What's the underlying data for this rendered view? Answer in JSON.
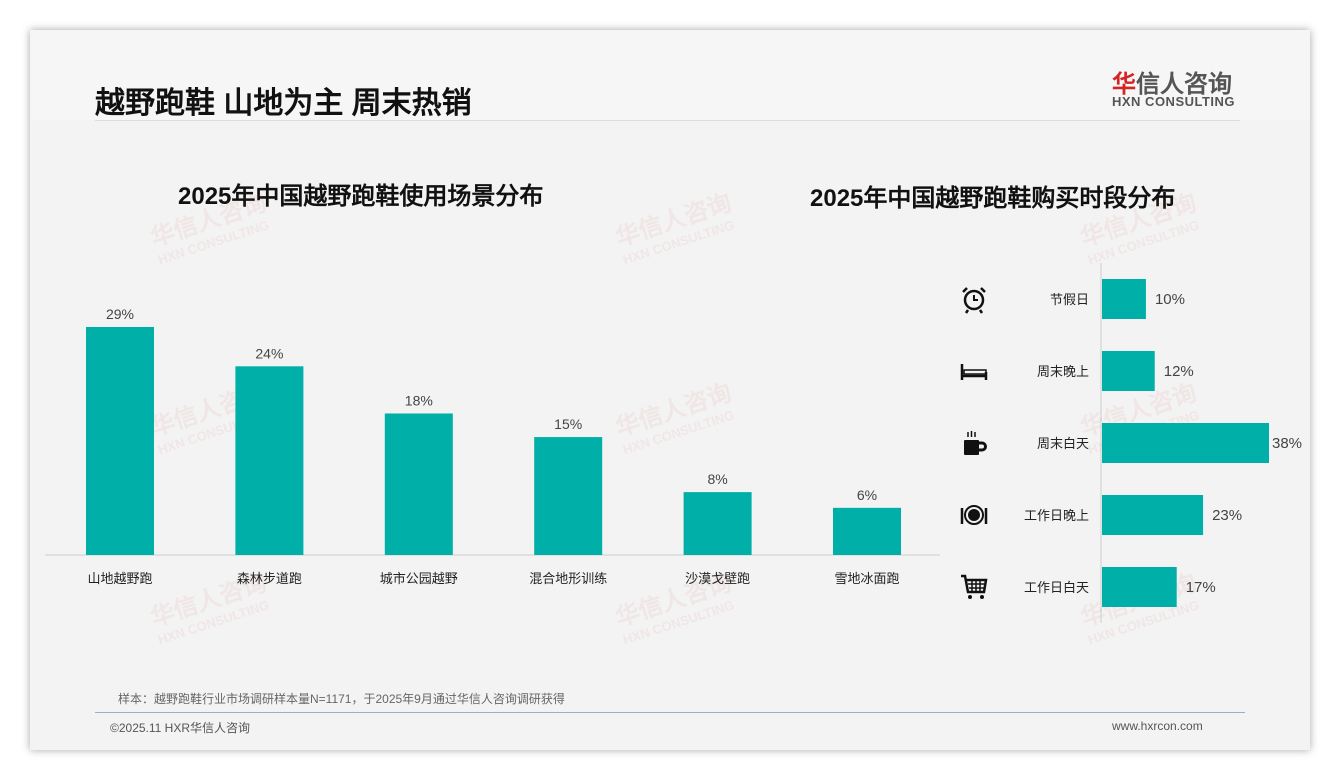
{
  "header": {
    "title": "越野跑鞋 山地为主 周末热销",
    "logo_cn_red": "华",
    "logo_cn": "信人咨询",
    "logo_en": "HXN CONSULTING"
  },
  "watermark": {
    "cn": "华信人咨询",
    "en": "HXN CONSULTING"
  },
  "chart_data": [
    {
      "type": "bar",
      "title": "2025年中国越野跑鞋使用场景分布",
      "categories": [
        "山地越野跑",
        "森林步道跑",
        "城市公园越野",
        "混合地形训练",
        "沙漠戈壁跑",
        "雪地冰面跑"
      ],
      "values": [
        29,
        24,
        18,
        15,
        8,
        6
      ],
      "labels": [
        "29%",
        "24%",
        "18%",
        "15%",
        "8%",
        "6%"
      ],
      "ylim": [
        0,
        30
      ],
      "color": "#00b0a8"
    },
    {
      "type": "bar",
      "orientation": "horizontal",
      "title": "2025年中国越野跑鞋购买时段分布",
      "categories": [
        "节假日",
        "周末晚上",
        "周末白天",
        "工作日晚上",
        "工作日白天"
      ],
      "icons": [
        "alarm-clock-icon",
        "bed-icon",
        "coffee-cup-icon",
        "dining-icon",
        "shopping-cart-icon"
      ],
      "values": [
        10,
        12,
        38,
        23,
        17
      ],
      "labels": [
        "10%",
        "12%",
        "38%",
        "23%",
        "17%"
      ],
      "xlim": [
        0,
        40
      ],
      "color": "#00b0a8"
    }
  ],
  "footer": {
    "note": "样本：越野跑鞋行业市场调研样本量N=1171，于2025年9月通过华信人咨询调研获得",
    "copyright": "©2025.11 HXR华信人咨询",
    "url": "www.hxrcon.com"
  }
}
